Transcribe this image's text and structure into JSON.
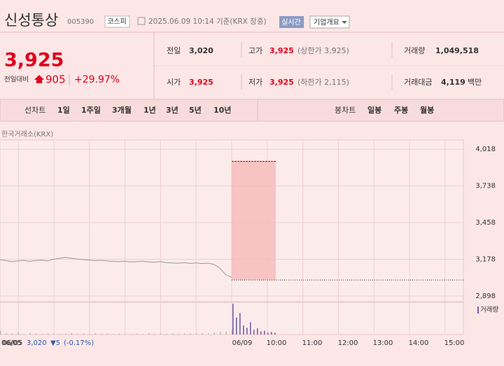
{
  "header": {
    "name": "신성통상",
    "code": "005390",
    "market": "코스피",
    "timestamp": "2025.06.09 10:14 기준(KRX 장중)",
    "realtime": "실시간",
    "company": "기업개요"
  },
  "quote": {
    "price": "3,925",
    "change_label": "전일대비",
    "change": "905",
    "change_pct": "+29.97%",
    "stats": [
      {
        "label": "전일",
        "value": "3,020"
      },
      {
        "label": "고가",
        "value": "3,925",
        "note": "(상한가 3,925)"
      },
      {
        "label": "거래량",
        "value": "1,049,518"
      },
      {
        "label": "시가",
        "value": "3,925"
      },
      {
        "label": "저가",
        "value": "3,925",
        "note": "(하한가 2,115)"
      },
      {
        "label": "거래대금",
        "value": "4,119",
        "unit": "백만"
      }
    ]
  },
  "tabs": {
    "line_label": "선차트",
    "line": [
      "1일",
      "1주일",
      "3개월",
      "1년",
      "3년",
      "5년",
      "10년"
    ],
    "candle_label": "봉차트",
    "candle": [
      "일봉",
      "주봉",
      "월봉"
    ]
  },
  "chart": {
    "source": "한국거래소(KRX)",
    "ylim": [
      2855,
      4088
    ],
    "yticks": [
      {
        "value": 4018,
        "label": "4,018"
      },
      {
        "value": 3738,
        "label": "3,738"
      },
      {
        "value": 3458,
        "label": "3,458"
      },
      {
        "value": 3178,
        "label": "3,178"
      },
      {
        "value": 2898,
        "label": "2,898"
      }
    ],
    "x_labels": [
      "06/05",
      "06/09",
      "10:00",
      "11:00",
      "12:00",
      "13:00",
      "14:00",
      "15:00"
    ],
    "prev_close": 3020,
    "prev_day": [
      3175,
      3168,
      3160,
      3165,
      3170,
      3162,
      3168,
      3172,
      3165,
      3178,
      3185,
      3192,
      3186,
      3180,
      3175,
      3172,
      3168,
      3170,
      3165,
      3162,
      3160,
      3163,
      3158,
      3160,
      3164,
      3158,
      3155,
      3160,
      3152,
      3150,
      3148,
      3152,
      3146,
      3150,
      3145,
      3148,
      3140,
      3110,
      3060,
      3040
    ],
    "today": [
      3925,
      3925,
      3925,
      3925,
      3925,
      3925,
      3925,
      3925,
      3925,
      3925,
      3925,
      3925,
      3925
    ],
    "volume_label": "거래량",
    "prev_volume": [
      12,
      4,
      3,
      6,
      2,
      5,
      3,
      2,
      4,
      3,
      2,
      3,
      5,
      2,
      3,
      2,
      4,
      2,
      3,
      2,
      3,
      2,
      2,
      3,
      2,
      4,
      2,
      3,
      2,
      3,
      2,
      3,
      4,
      3,
      5,
      4,
      6,
      8,
      10,
      14
    ],
    "today_volume": [
      100,
      55,
      70,
      30,
      22,
      40,
      15,
      20,
      10,
      12,
      6,
      8,
      5
    ],
    "hover": {
      "date": "06/05",
      "price": "3,020",
      "change": "▼5",
      "pct": "(-0.17%)"
    }
  }
}
